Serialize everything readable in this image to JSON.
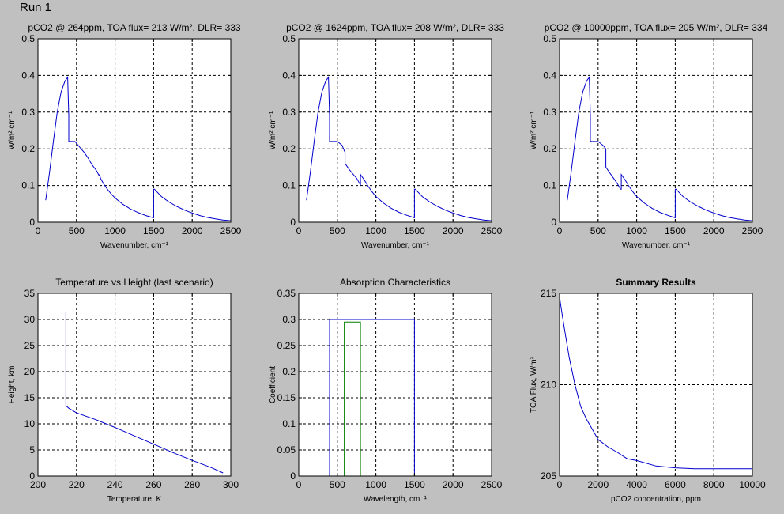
{
  "window": {
    "run_label": "Run 1"
  },
  "chart_data": [
    {
      "type": "line",
      "title": "pCO2 @ 264ppm, TOA flux= 213 W/m², DLR= 333",
      "xlabel": "Wavenumber, cm⁻¹",
      "ylabel": "W/m² cm⁻¹",
      "xlim": [
        0,
        2500
      ],
      "ylim": [
        0,
        0.5
      ],
      "xticks": [
        0,
        500,
        1000,
        1500,
        2000,
        2500
      ],
      "yticks": [
        0,
        0.1,
        0.2,
        0.3,
        0.4,
        0.5
      ],
      "xtick_labels": [
        "0",
        "500",
        "1000",
        "1500",
        "2000",
        "2500"
      ],
      "ytick_labels": [
        "0",
        "0.1",
        "0.2",
        "0.3",
        "0.4",
        "0.5"
      ],
      "grid": true,
      "series": [
        {
          "color": "#0000cc",
          "x": [
            100,
            150,
            200,
            250,
            300,
            350,
            385,
            400,
            400,
            420,
            480,
            500,
            540,
            600,
            650,
            700,
            760,
            790,
            800,
            810,
            850,
            900,
            950,
            1000,
            1100,
            1200,
            1300,
            1400,
            1500,
            1500,
            1510,
            1600,
            1700,
            1800,
            1900,
            2000,
            2100,
            2200,
            2300,
            2400,
            2500
          ],
          "y": [
            0.06,
            0.135,
            0.22,
            0.3,
            0.355,
            0.385,
            0.395,
            0.29,
            0.22,
            0.22,
            0.22,
            0.215,
            0.205,
            0.19,
            0.175,
            0.157,
            0.14,
            0.128,
            0.13,
            0.12,
            0.105,
            0.09,
            0.077,
            0.066,
            0.049,
            0.036,
            0.026,
            0.018,
            0.012,
            0.09,
            0.09,
            0.07,
            0.055,
            0.043,
            0.033,
            0.025,
            0.018,
            0.013,
            0.009,
            0.006,
            0.004
          ]
        }
      ]
    },
    {
      "type": "line",
      "title": "pCO2 @ 1624ppm, TOA flux= 208 W/m², DLR= 333",
      "xlabel": "Wavenumber, cm⁻¹",
      "ylabel": "W/m² cm⁻¹",
      "xlim": [
        0,
        2500
      ],
      "ylim": [
        0,
        0.5
      ],
      "xticks": [
        0,
        500,
        1000,
        1500,
        2000,
        2500
      ],
      "yticks": [
        0,
        0.1,
        0.2,
        0.3,
        0.4,
        0.5
      ],
      "xtick_labels": [
        "0",
        "500",
        "1000",
        "1500",
        "2000",
        "2500"
      ],
      "ytick_labels": [
        "0",
        "0.1",
        "0.2",
        "0.3",
        "0.4",
        "0.5"
      ],
      "grid": true,
      "series": [
        {
          "color": "#0000cc",
          "x": [
            100,
            150,
            200,
            250,
            300,
            350,
            385,
            400,
            400,
            420,
            500,
            560,
            600,
            600,
            650,
            700,
            750,
            790,
            800,
            800,
            850,
            900,
            950,
            1000,
            1100,
            1200,
            1300,
            1400,
            1500,
            1500,
            1510,
            1600,
            1700,
            1800,
            1900,
            2000,
            2100,
            2200,
            2300,
            2400,
            2500
          ],
          "y": [
            0.06,
            0.135,
            0.22,
            0.3,
            0.355,
            0.385,
            0.395,
            0.29,
            0.22,
            0.22,
            0.22,
            0.21,
            0.19,
            0.16,
            0.145,
            0.132,
            0.12,
            0.105,
            0.1,
            0.13,
            0.115,
            0.098,
            0.083,
            0.07,
            0.052,
            0.038,
            0.027,
            0.019,
            0.012,
            0.09,
            0.09,
            0.07,
            0.055,
            0.043,
            0.033,
            0.025,
            0.018,
            0.013,
            0.009,
            0.006,
            0.004
          ]
        }
      ]
    },
    {
      "type": "line",
      "title": "pCO2 @ 10000ppm, TOA flux= 205 W/m², DLR= 334",
      "xlabel": "Wavenumber, cm⁻¹",
      "ylabel": "W/m² cm⁻¹",
      "xlim": [
        0,
        2500
      ],
      "ylim": [
        0,
        0.5
      ],
      "xticks": [
        0,
        500,
        1000,
        1500,
        2000,
        2500
      ],
      "yticks": [
        0,
        0.1,
        0.2,
        0.3,
        0.4,
        0.5
      ],
      "xtick_labels": [
        "0",
        "500",
        "1000",
        "1500",
        "2000",
        "2500"
      ],
      "ytick_labels": [
        "0",
        "0.1",
        "0.2",
        "0.3",
        "0.4",
        "0.5"
      ],
      "grid": true,
      "series": [
        {
          "color": "#0000cc",
          "x": [
            100,
            150,
            200,
            250,
            300,
            350,
            385,
            400,
            400,
            420,
            500,
            560,
            600,
            600,
            650,
            700,
            750,
            790,
            800,
            800,
            850,
            900,
            950,
            1000,
            1100,
            1200,
            1300,
            1400,
            1500,
            1500,
            1510,
            1600,
            1700,
            1800,
            1900,
            2000,
            2100,
            2200,
            2300,
            2400,
            2500
          ],
          "y": [
            0.06,
            0.135,
            0.22,
            0.3,
            0.355,
            0.385,
            0.395,
            0.29,
            0.22,
            0.22,
            0.22,
            0.21,
            0.2,
            0.15,
            0.135,
            0.12,
            0.105,
            0.09,
            0.09,
            0.13,
            0.115,
            0.098,
            0.083,
            0.07,
            0.052,
            0.038,
            0.027,
            0.019,
            0.012,
            0.09,
            0.09,
            0.07,
            0.055,
            0.043,
            0.033,
            0.025,
            0.018,
            0.013,
            0.009,
            0.006,
            0.004
          ]
        }
      ]
    },
    {
      "type": "line",
      "title": "Temperature vs Height (last scenario)",
      "xlabel": "Temperature, K",
      "ylabel": "Height, km",
      "xlim": [
        200,
        300
      ],
      "ylim": [
        0,
        35
      ],
      "xticks": [
        200,
        220,
        240,
        260,
        280,
        300
      ],
      "yticks": [
        0,
        5,
        10,
        15,
        20,
        25,
        30,
        35
      ],
      "xtick_labels": [
        "200",
        "220",
        "240",
        "260",
        "280",
        "300"
      ],
      "ytick_labels": [
        "0",
        "5",
        "10",
        "15",
        "20",
        "25",
        "30",
        "35"
      ],
      "grid": true,
      "series": [
        {
          "color": "#0000cc",
          "x": [
            214.5,
            214.5,
            216,
            220,
            230,
            240,
            250,
            260,
            270,
            280,
            290,
            296
          ],
          "y": [
            31.5,
            13.5,
            13.0,
            12.1,
            10.8,
            9.3,
            7.7,
            6.1,
            4.5,
            3.0,
            1.6,
            0.6
          ]
        }
      ]
    },
    {
      "type": "line",
      "title": "Absorption Characteristics",
      "xlabel": "Wavelength, cm⁻¹",
      "ylabel": "Coefficient",
      "xlim": [
        0,
        2500
      ],
      "ylim": [
        0,
        0.35
      ],
      "xticks": [
        0,
        500,
        1000,
        1500,
        2000,
        2500
      ],
      "yticks": [
        0,
        0.05,
        0.1,
        0.15,
        0.2,
        0.25,
        0.3,
        0.35
      ],
      "xtick_labels": [
        "0",
        "500",
        "1000",
        "1500",
        "2000",
        "2500"
      ],
      "ytick_labels": [
        "0",
        "0.05",
        "0.1",
        "0.15",
        "0.2",
        "0.25",
        "0.3",
        "0.35"
      ],
      "grid": true,
      "series": [
        {
          "color": "#0000cc",
          "x": [
            0,
            400,
            400,
            1500,
            1500,
            2500
          ],
          "y": [
            0,
            0,
            0.3,
            0.3,
            0,
            0
          ]
        },
        {
          "color": "#008000",
          "x": [
            0,
            590,
            590,
            800,
            800,
            2500
          ],
          "y": [
            0,
            0,
            0.295,
            0.295,
            0,
            0
          ]
        }
      ]
    },
    {
      "type": "line",
      "title": "Summary Results",
      "xlabel": "pCO2 concentration, ppm",
      "ylabel": "TOA Flux, W/m²",
      "xlim": [
        0,
        10000
      ],
      "ylim": [
        205,
        215
      ],
      "xticks": [
        0,
        2000,
        4000,
        6000,
        8000,
        10000
      ],
      "yticks": [
        205,
        210,
        215
      ],
      "xtick_labels": [
        "0",
        "2000",
        "4000",
        "6000",
        "8000",
        "10000"
      ],
      "ytick_labels": [
        "205",
        "210",
        "215"
      ],
      "grid": true,
      "series": [
        {
          "color": "#0000cc",
          "x": [
            0,
            100,
            264,
            500,
            800,
            1100,
            1400,
            1624,
            2000,
            2500,
            3000,
            3500,
            4000,
            5000,
            6000,
            7000,
            8000,
            9000,
            10000
          ],
          "y": [
            214.8,
            214.1,
            213.0,
            211.5,
            210.0,
            208.8,
            208.1,
            207.7,
            207.0,
            206.6,
            206.3,
            205.95,
            205.85,
            205.55,
            205.45,
            205.4,
            205.4,
            205.4,
            205.4
          ]
        }
      ]
    }
  ]
}
